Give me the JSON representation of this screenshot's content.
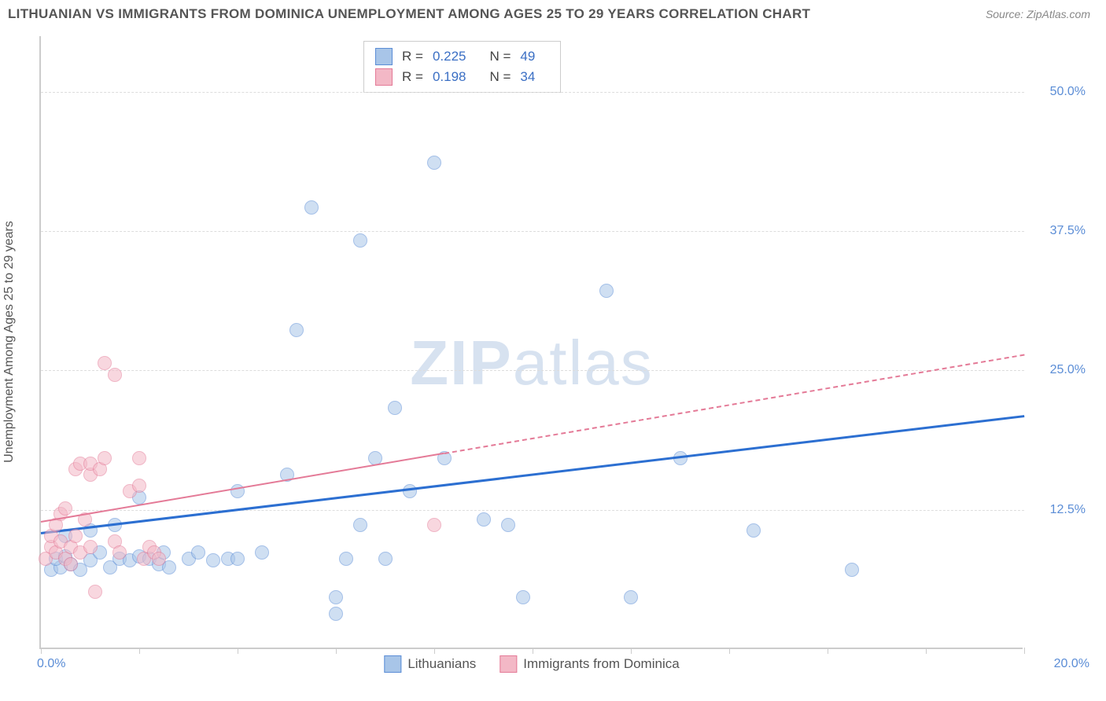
{
  "title": "LITHUANIAN VS IMMIGRANTS FROM DOMINICA UNEMPLOYMENT AMONG AGES 25 TO 29 YEARS CORRELATION CHART",
  "source": "Source: ZipAtlas.com",
  "watermark_a": "ZIP",
  "watermark_b": "atlas",
  "y_axis_label": "Unemployment Among Ages 25 to 29 years",
  "chart": {
    "type": "scatter",
    "background_color": "#ffffff",
    "grid_color": "#dddddd",
    "axis_color": "#cccccc",
    "tick_label_color": "#5b8dd6",
    "xlim": [
      0,
      20
    ],
    "ylim": [
      0,
      55
    ],
    "x_ticks": [
      0,
      2,
      4,
      6,
      8,
      10,
      12,
      14,
      16,
      18,
      20
    ],
    "y_grid": [
      12.5,
      25.0,
      37.5,
      50.0
    ],
    "x_tick_labels": {
      "min": "0.0%",
      "max": "20.0%"
    },
    "y_tick_labels": [
      "12.5%",
      "25.0%",
      "37.5%",
      "50.0%"
    ],
    "marker_radius": 9,
    "marker_opacity": 0.55,
    "series": [
      {
        "name": "Lithuanians",
        "fill_color": "#a8c5e8",
        "stroke_color": "#5b8dd6",
        "trend_color": "#2c6fd1",
        "trend_width": 3,
        "trend_dash": "none",
        "trend_start": [
          0,
          10.5
        ],
        "trend_end": [
          20,
          21.0
        ],
        "R": "0.225",
        "N": "49",
        "points": [
          [
            0.2,
            7.0
          ],
          [
            0.4,
            7.2
          ],
          [
            0.3,
            8.0
          ],
          [
            0.5,
            8.2
          ],
          [
            0.6,
            7.5
          ],
          [
            0.8,
            7.0
          ],
          [
            1.0,
            7.8
          ],
          [
            1.2,
            8.5
          ],
          [
            1.4,
            7.2
          ],
          [
            1.6,
            8.0
          ],
          [
            1.8,
            7.8
          ],
          [
            2.0,
            8.2
          ],
          [
            2.2,
            8.0
          ],
          [
            2.4,
            7.5
          ],
          [
            2.6,
            7.2
          ],
          [
            0.5,
            10.0
          ],
          [
            1.0,
            10.5
          ],
          [
            1.5,
            11.0
          ],
          [
            2.0,
            13.5
          ],
          [
            2.5,
            8.5
          ],
          [
            3.0,
            8.0
          ],
          [
            3.2,
            8.5
          ],
          [
            3.5,
            7.8
          ],
          [
            3.8,
            8.0
          ],
          [
            4.0,
            8.0
          ],
          [
            4.0,
            14.0
          ],
          [
            4.5,
            8.5
          ],
          [
            5.0,
            15.5
          ],
          [
            5.2,
            28.5
          ],
          [
            5.5,
            39.5
          ],
          [
            6.0,
            4.5
          ],
          [
            6.0,
            3.0
          ],
          [
            6.2,
            8.0
          ],
          [
            6.5,
            11.0
          ],
          [
            6.5,
            36.5
          ],
          [
            6.8,
            17.0
          ],
          [
            7.0,
            8.0
          ],
          [
            7.2,
            21.5
          ],
          [
            7.5,
            14.0
          ],
          [
            8.0,
            43.5
          ],
          [
            8.2,
            17.0
          ],
          [
            9.0,
            11.5
          ],
          [
            9.5,
            11.0
          ],
          [
            9.8,
            4.5
          ],
          [
            11.5,
            32.0
          ],
          [
            12.0,
            4.5
          ],
          [
            13.0,
            17.0
          ],
          [
            14.5,
            10.5
          ],
          [
            16.5,
            7.0
          ]
        ]
      },
      {
        "name": "Immigrants from Dominica",
        "fill_color": "#f3b8c6",
        "stroke_color": "#e47a97",
        "trend_color": "#e47a97",
        "trend_width": 2,
        "trend_dash": "5,5",
        "trend_start": [
          0,
          11.5
        ],
        "trend_end": [
          20,
          26.5
        ],
        "trend_solid_until": 8.2,
        "R": "0.198",
        "N": "34",
        "points": [
          [
            0.1,
            8.0
          ],
          [
            0.2,
            9.0
          ],
          [
            0.2,
            10.0
          ],
          [
            0.3,
            8.5
          ],
          [
            0.3,
            11.0
          ],
          [
            0.4,
            9.5
          ],
          [
            0.4,
            12.0
          ],
          [
            0.5,
            8.0
          ],
          [
            0.5,
            12.5
          ],
          [
            0.6,
            9.0
          ],
          [
            0.6,
            7.5
          ],
          [
            0.7,
            10.0
          ],
          [
            0.7,
            16.0
          ],
          [
            0.8,
            16.5
          ],
          [
            0.8,
            8.5
          ],
          [
            0.9,
            11.5
          ],
          [
            1.0,
            9.0
          ],
          [
            1.0,
            15.5
          ],
          [
            1.0,
            16.5
          ],
          [
            1.1,
            5.0
          ],
          [
            1.2,
            16.0
          ],
          [
            1.3,
            25.5
          ],
          [
            1.3,
            17.0
          ],
          [
            1.5,
            9.5
          ],
          [
            1.5,
            24.5
          ],
          [
            1.6,
            8.5
          ],
          [
            1.8,
            14.0
          ],
          [
            2.0,
            14.5
          ],
          [
            2.0,
            17.0
          ],
          [
            2.1,
            8.0
          ],
          [
            2.2,
            9.0
          ],
          [
            2.3,
            8.5
          ],
          [
            2.4,
            8.0
          ],
          [
            8.0,
            11.0
          ]
        ]
      }
    ]
  },
  "stats_labels": {
    "R": "R =",
    "N": "N ="
  },
  "legend": {
    "items": [
      {
        "label": "Lithuanians",
        "fill": "#a8c5e8",
        "stroke": "#5b8dd6"
      },
      {
        "label": "Immigrants from Dominica",
        "fill": "#f3b8c6",
        "stroke": "#e47a97"
      }
    ]
  }
}
